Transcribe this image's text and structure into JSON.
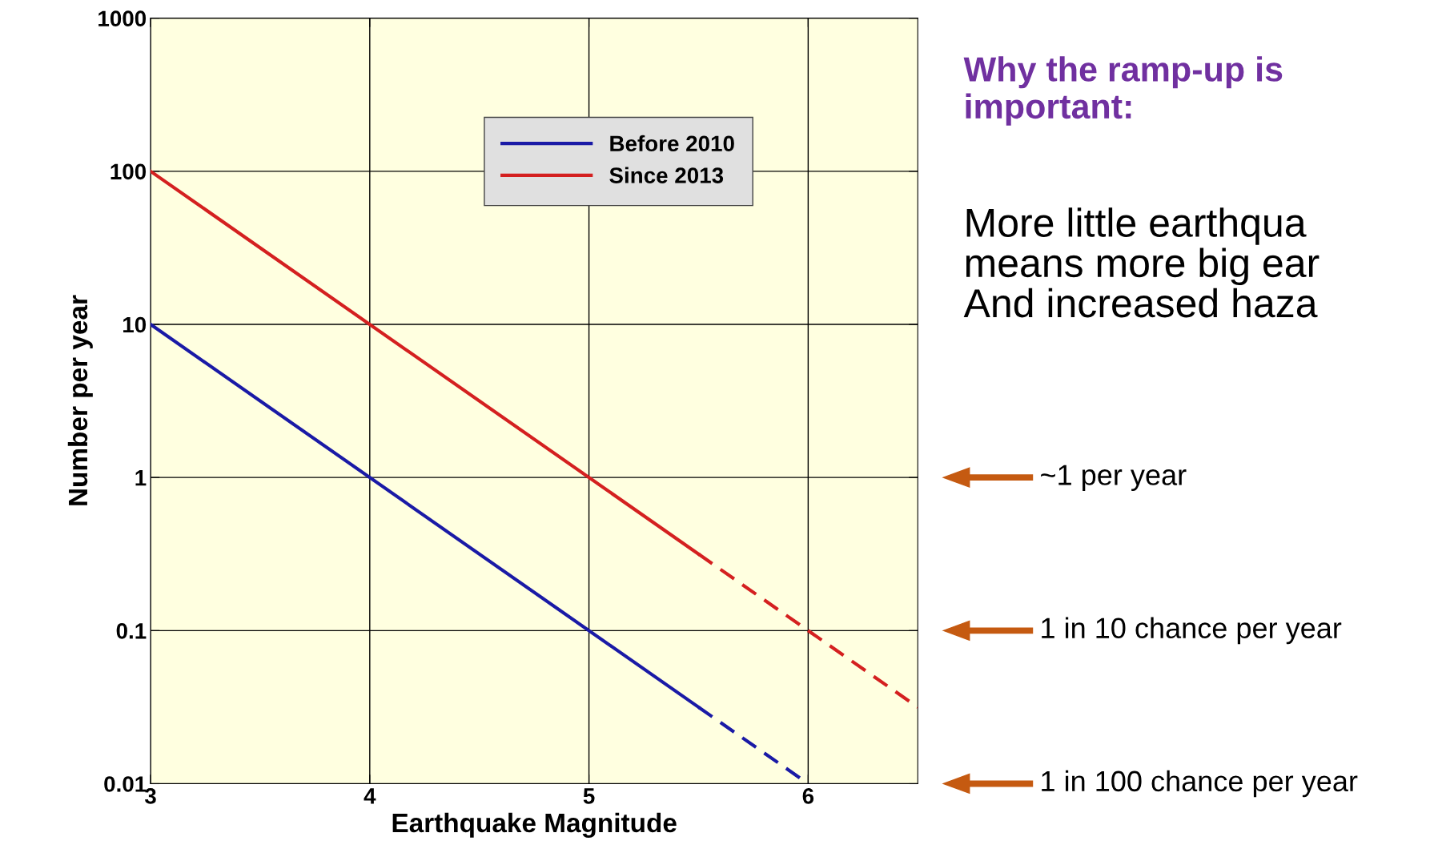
{
  "chart_data": {
    "type": "line",
    "xlabel": "Earthquake Magnitude",
    "ylabel": "Number per year",
    "series": [
      {
        "name": "Before 2010",
        "color": "#1a1aa6",
        "x": [
          3,
          5.5
        ],
        "values": [
          10,
          0.0316
        ],
        "line_style": "solid"
      },
      {
        "name": "Since 2013",
        "color": "#d42020",
        "x": [
          3,
          5.5
        ],
        "values": [
          100,
          0.316
        ],
        "line_style": "solid"
      },
      {
        "color": "#1a1aa6",
        "x": [
          5.5,
          6
        ],
        "values": [
          0.0316,
          0.01
        ],
        "line_style": "dashed"
      },
      {
        "color": "#d42020",
        "x": [
          5.5,
          6.5
        ],
        "values": [
          0.316,
          0.0316
        ],
        "line_style": "dashed"
      }
    ],
    "xlim": [
      3,
      6.5
    ],
    "xticks": [
      3,
      4,
      5,
      6
    ],
    "ylim": [
      0.01,
      1000
    ],
    "yticks": [
      0.01,
      0.1,
      1,
      10,
      100,
      1000
    ],
    "log": "y",
    "grid": true,
    "legend": "top",
    "marker": "none",
    "annotations": [
      "Why the ramp-up is important:",
      "More little earthqua\nmeans more big ear\nAnd increased haza",
      "~1 per year",
      "1 in 10 chance per year",
      "1 in 100 chance per year"
    ]
  }
}
